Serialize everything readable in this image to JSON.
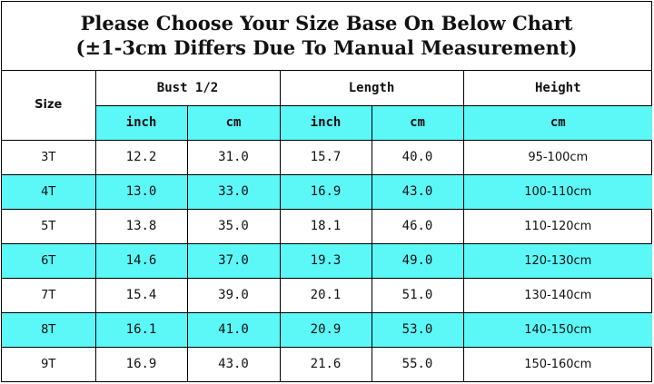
{
  "title": {
    "line1": "Please Choose Your Size Base On Below Chart",
    "line2": "(±1-3cm Differs Due To Manual Measurement)"
  },
  "headers": {
    "size": "Size",
    "bust": "Bust 1/2",
    "length": "Length",
    "height": "Height",
    "bust_inch": "inch",
    "bust_cm": "cm",
    "length_inch": "inch",
    "length_cm": "cm",
    "height_cm": "cm"
  },
  "colors": {
    "highlight": "#5cf7f7",
    "border": "#000000"
  },
  "rows": [
    {
      "size": "3T",
      "bust_inch": "12.2",
      "bust_cm": "31.0",
      "length_inch": "15.7",
      "length_cm": "40.0",
      "height": "95-100cm"
    },
    {
      "size": "4T",
      "bust_inch": "13.0",
      "bust_cm": "33.0",
      "length_inch": "16.9",
      "length_cm": "43.0",
      "height": "100-110cm"
    },
    {
      "size": "5T",
      "bust_inch": "13.8",
      "bust_cm": "35.0",
      "length_inch": "18.1",
      "length_cm": "46.0",
      "height": "110-120cm"
    },
    {
      "size": "6T",
      "bust_inch": "14.6",
      "bust_cm": "37.0",
      "length_inch": "19.3",
      "length_cm": "49.0",
      "height": "120-130cm"
    },
    {
      "size": "7T",
      "bust_inch": "15.4",
      "bust_cm": "39.0",
      "length_inch": "20.1",
      "length_cm": "51.0",
      "height": "130-140cm"
    },
    {
      "size": "8T",
      "bust_inch": "16.1",
      "bust_cm": "41.0",
      "length_inch": "20.9",
      "length_cm": "53.0",
      "height": "140-150cm"
    },
    {
      "size": "9T",
      "bust_inch": "16.9",
      "bust_cm": "43.0",
      "length_inch": "21.6",
      "length_cm": "55.0",
      "height": "150-160cm"
    }
  ]
}
